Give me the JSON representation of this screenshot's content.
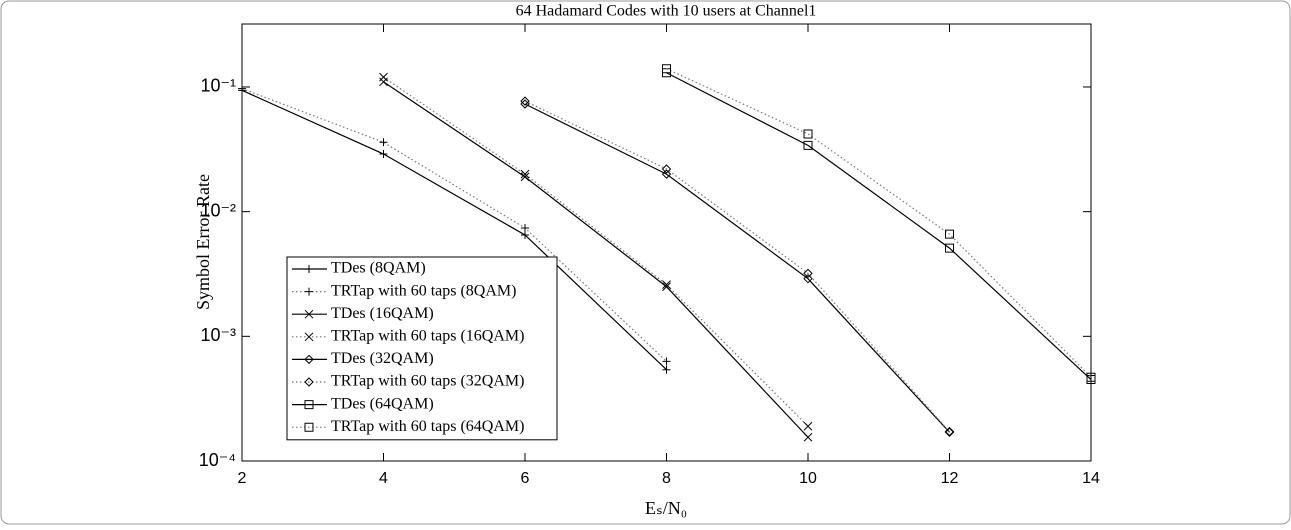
{
  "chart_data": {
    "type": "line",
    "title": "64 Hadamard Codes with 10 users at Channel1",
    "xlabel": "Eₛ/N₀",
    "ylabel": "Symbol Error Rate",
    "xlim": [
      2,
      14
    ],
    "xticks": [
      2,
      4,
      6,
      8,
      10,
      12,
      14
    ],
    "ylim": [
      0.0001,
      0.32
    ],
    "yscale": "log",
    "yticks": [
      {
        "value": 0.0001,
        "label": "10⁻⁴"
      },
      {
        "value": 0.001,
        "label": "10⁻³"
      },
      {
        "value": 0.01,
        "label": "10⁻²"
      },
      {
        "value": 0.1,
        "label": "10⁻¹"
      }
    ],
    "grid": false,
    "legend": "lower left",
    "series": [
      {
        "name": "TDes (8QAM)",
        "color": "#000000",
        "linestyle": "solid",
        "marker": "plus",
        "x": [
          2,
          4,
          6,
          8
        ],
        "values": [
          0.094,
          0.029,
          0.0065,
          0.00054
        ]
      },
      {
        "name": "TRTap with 60 taps (8QAM)",
        "color": "#000000",
        "linestyle": "dotted",
        "marker": "plus",
        "x": [
          2,
          4,
          6,
          8
        ],
        "values": [
          0.097,
          0.036,
          0.0074,
          0.00063
        ]
      },
      {
        "name": "TDes (16QAM)",
        "color": "#000000",
        "linestyle": "solid",
        "marker": "cross",
        "x": [
          4,
          6,
          8,
          10
        ],
        "values": [
          0.11,
          0.019,
          0.0025,
          0.000155
        ]
      },
      {
        "name": "TRTap with 60 taps (16QAM)",
        "color": "#000000",
        "linestyle": "dotted",
        "marker": "cross",
        "x": [
          4,
          6,
          8,
          10
        ],
        "values": [
          0.12,
          0.02,
          0.0026,
          0.00019
        ]
      },
      {
        "name": "TDes (32QAM)",
        "color": "#000000",
        "linestyle": "solid",
        "marker": "diamond",
        "x": [
          6,
          8,
          10,
          12
        ],
        "values": [
          0.073,
          0.02,
          0.0029,
          0.00017
        ]
      },
      {
        "name": "TRTap with 60 taps (32QAM)",
        "color": "#000000",
        "linestyle": "dotted",
        "marker": "diamond",
        "x": [
          6,
          8,
          10,
          12
        ],
        "values": [
          0.077,
          0.022,
          0.0032,
          0.000172
        ]
      },
      {
        "name": "TDes (64QAM)",
        "color": "#000000",
        "linestyle": "solid",
        "marker": "square",
        "x": [
          8,
          10,
          12,
          14
        ],
        "values": [
          0.13,
          0.034,
          0.0051,
          0.00045
        ]
      },
      {
        "name": "TRTap with 60 taps (64QAM)",
        "color": "#000000",
        "linestyle": "dotted",
        "marker": "square",
        "x": [
          8,
          10,
          12,
          14
        ],
        "values": [
          0.14,
          0.042,
          0.0066,
          0.00047
        ]
      }
    ]
  }
}
